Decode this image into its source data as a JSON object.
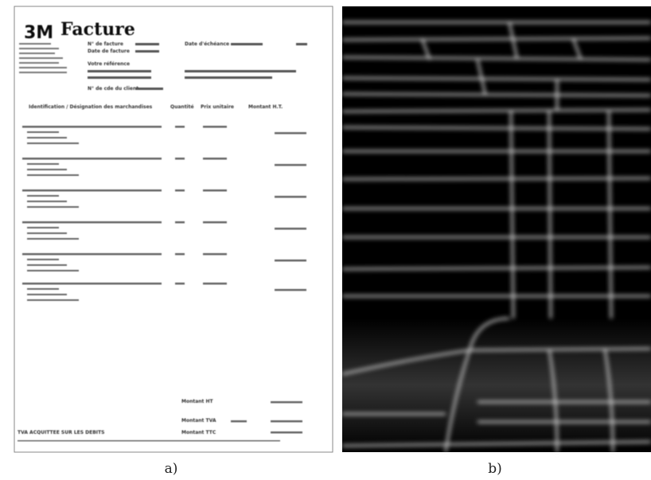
{
  "panel_a": {
    "logo": "3M",
    "title": "Facture",
    "fields": [
      "N° de facture",
      "Date de facture",
      "Date d'échéance",
      "Votre référence",
      "N° de cde du client"
    ],
    "columns": [
      "Identification / Désignation des marchandises",
      "Quantité",
      "Prix unitaire",
      "Montant H.T."
    ],
    "totals": [
      "Montant HT",
      "Montant TVA",
      "Montant TTC"
    ],
    "footer": "TVA ACQUITTEE SUR LES DEBITS"
  },
  "labels": [
    "a)",
    "b)"
  ]
}
